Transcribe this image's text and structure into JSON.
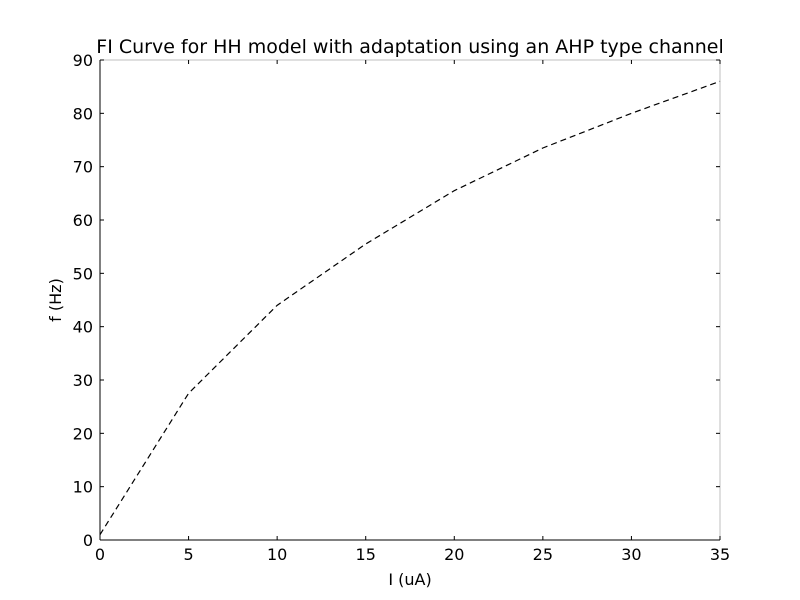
{
  "chart_data": {
    "type": "line",
    "title": "FI Curve for HH model with adaptation using an AHP type channel",
    "xlabel": "I (uA)",
    "ylabel": "f (Hz)",
    "xlim": [
      0,
      35
    ],
    "ylim": [
      0,
      90
    ],
    "xticks": [
      0,
      5,
      10,
      15,
      20,
      25,
      30,
      35
    ],
    "yticks": [
      0,
      10,
      20,
      30,
      40,
      50,
      60,
      70,
      80,
      90
    ],
    "grid": false,
    "legend": "none",
    "series": [
      {
        "line_style": "dashed",
        "color": "#000000",
        "x": [
          0,
          5,
          10,
          15,
          20,
          25,
          30,
          35
        ],
        "y": [
          1,
          27.5,
          44,
          55.5,
          65.5,
          73.5,
          80,
          86
        ]
      }
    ]
  }
}
